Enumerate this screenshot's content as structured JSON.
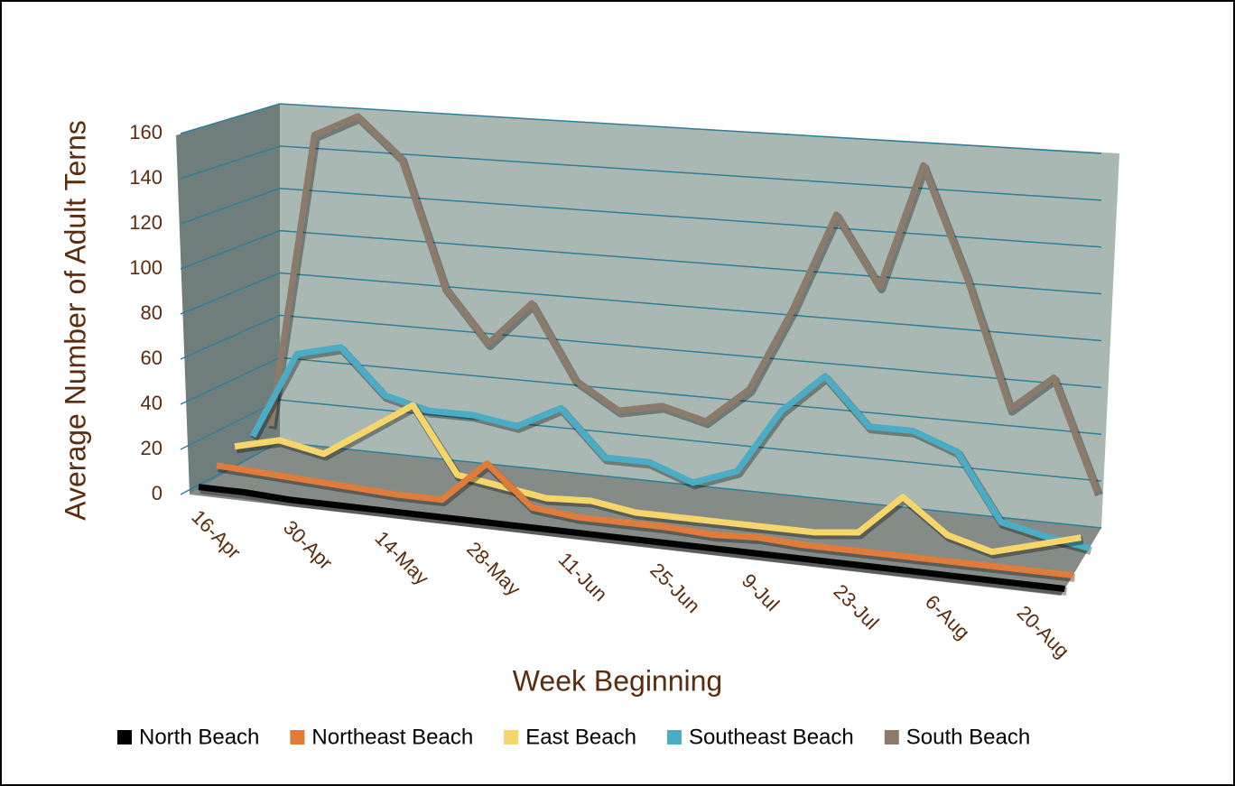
{
  "chart_data": {
    "type": "line3d",
    "x_label": "Week Beginning",
    "y_label": "Average Number of Adult Terns",
    "categories": [
      "16-Apr",
      null,
      "30-Apr",
      null,
      "14-May",
      null,
      "28-May",
      null,
      "11-Jun",
      null,
      "25-Jun",
      null,
      "9-Jul",
      null,
      "23-Jul",
      null,
      "6-Aug",
      null,
      "20-Aug",
      null
    ],
    "ylim": [
      0,
      160
    ],
    "yticks": [
      0,
      20,
      40,
      60,
      80,
      100,
      120,
      140,
      160
    ],
    "grid": true,
    "legend": "bottom",
    "series": [
      {
        "name": "North Beach",
        "color": "#000000",
        "values": [
          1,
          1,
          0,
          0,
          0,
          0,
          0,
          0,
          0,
          0,
          0,
          0,
          0,
          0,
          0,
          0,
          0,
          0,
          0,
          0
        ]
      },
      {
        "name": "Northeast Beach",
        "color": "#e07b39",
        "values": [
          6,
          5,
          4,
          3,
          2,
          2,
          20,
          3,
          1,
          1,
          1,
          0,
          1,
          0,
          0,
          0,
          0,
          0,
          0,
          0
        ]
      },
      {
        "name": "East Beach",
        "color": "#f6d56a",
        "values": [
          10,
          15,
          11,
          24,
          37,
          8,
          5,
          2,
          3,
          0,
          0,
          0,
          0,
          0,
          2,
          19,
          5,
          0,
          5,
          10
        ]
      },
      {
        "name": "Southeast Beach",
        "color": "#4bacc6",
        "values": [
          10,
          50,
          55,
          35,
          30,
          30,
          27,
          37,
          17,
          17,
          10,
          17,
          45,
          62,
          42,
          42,
          35,
          7,
          3,
          0
        ]
      },
      {
        "name": "South Beach",
        "color": "#8c7b6b",
        "values": [
          10,
          148,
          158,
          140,
          82,
          58,
          78,
          45,
          33,
          37,
          32,
          48,
          85,
          128,
          98,
          152,
          105,
          50,
          65,
          18
        ]
      }
    ]
  }
}
